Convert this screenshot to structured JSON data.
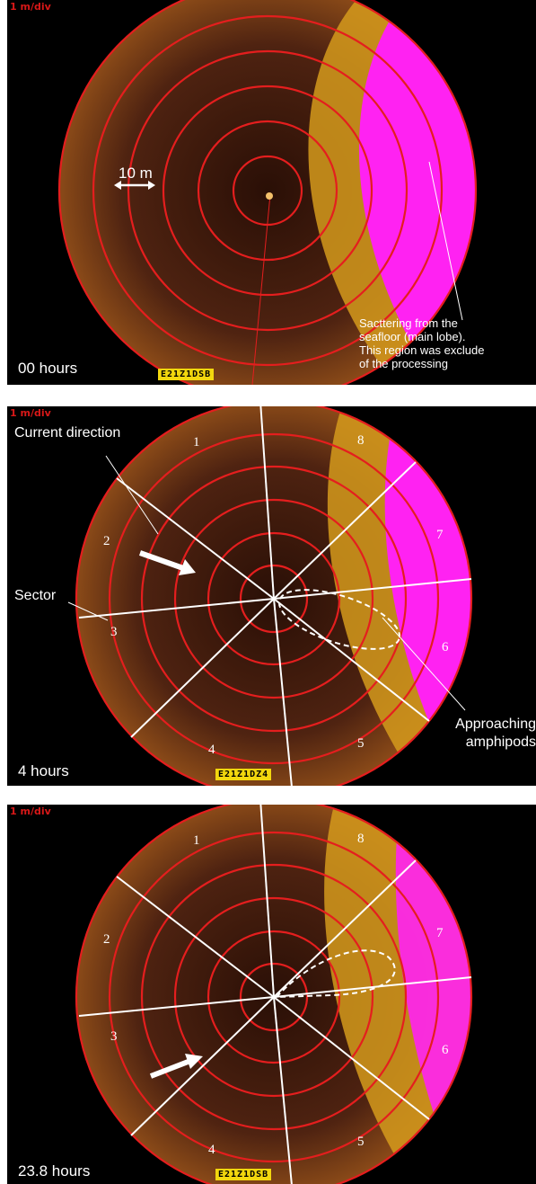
{
  "colors": {
    "background": "#000000",
    "sonar_body": "#4a1f0d",
    "range_rings": "#e41e1e",
    "seafloor": "#ff20f0",
    "echo": "#f2b31e"
  },
  "panels": [
    {
      "scale_label": "1 m/div",
      "time_label": "00 hours",
      "range_label": "10 m",
      "annotation": [
        "Sacttering from the",
        "seafloor (main lobe).",
        "This region was exclude",
        "of the processing"
      ],
      "id_label": "E21Z1DSB"
    },
    {
      "scale_label": "1 m/div",
      "time_label": "4 hours",
      "current_label": "Current direction",
      "sector_label": "Sector",
      "approach_label": [
        "Approaching",
        "amphipods"
      ],
      "sectors": [
        "1",
        "2",
        "3",
        "4",
        "5",
        "6",
        "7",
        "8"
      ],
      "id_label": "E21Z1DZ4"
    },
    {
      "scale_label": "1 m/div",
      "time_label": "23.8 hours",
      "sectors": [
        "1",
        "2",
        "3",
        "4",
        "5",
        "6",
        "7",
        "8"
      ],
      "id_label": "E21Z1DSB"
    }
  ]
}
